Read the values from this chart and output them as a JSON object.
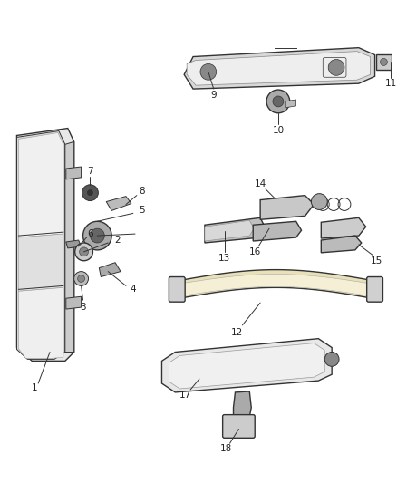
{
  "background_color": "#ffffff",
  "figsize": [
    4.38,
    5.33
  ],
  "dpi": 100,
  "line_color": "#333333",
  "label_color": "#222222",
  "label_fontsize": 7.5
}
